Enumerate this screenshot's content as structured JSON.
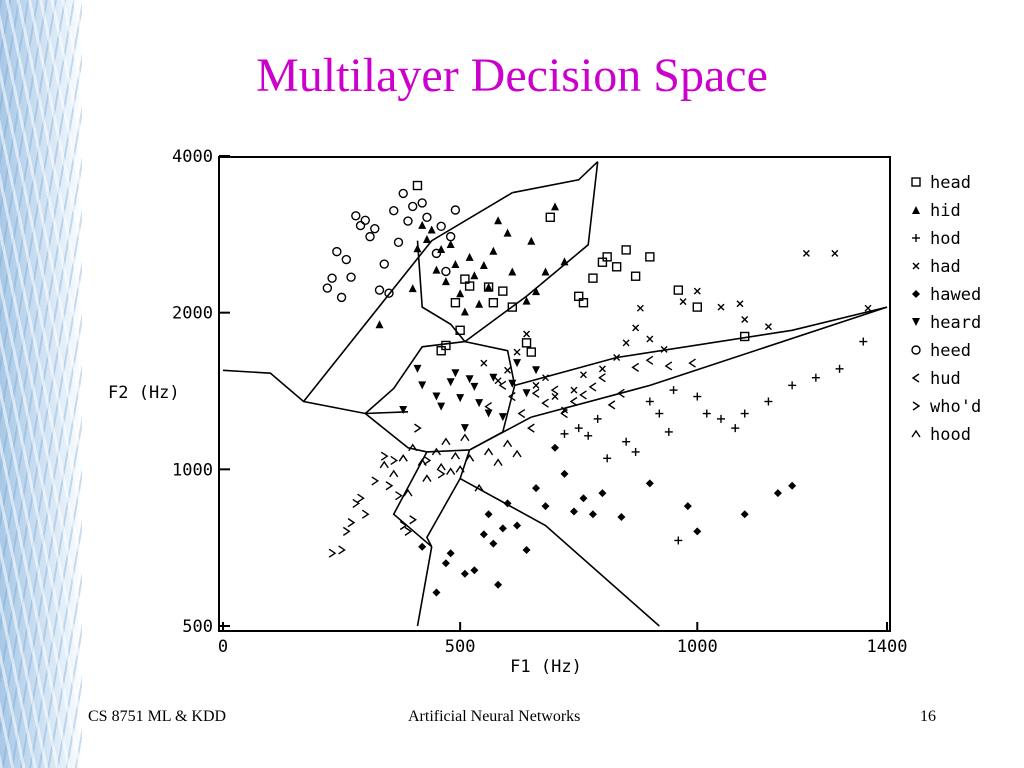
{
  "slide": {
    "title": "Multilayer Decision Space",
    "footer_left": "CS 8751 ML & KDD",
    "footer_center": "Artificial Neural Networks",
    "footer_right": "16",
    "title_color": "#cc00cc"
  },
  "chart_data": {
    "type": "scatter",
    "title": "",
    "xlabel": "F1 (Hz)",
    "ylabel": "F2 (Hz)",
    "x_scale": "linear",
    "y_scale": "log",
    "x_ticks": [
      0,
      500,
      1000,
      1400
    ],
    "x_tick_labels": [
      "0",
      "500",
      "1000",
      "1400"
    ],
    "y_ticks": [
      500,
      1000,
      2000,
      4000
    ],
    "y_tick_labels": [
      "500",
      "1000",
      "2000",
      "4000"
    ],
    "xlim": [
      0,
      1400
    ],
    "ylim": [
      500,
      4000
    ],
    "grid": false,
    "legend_position": "right",
    "legend": [
      {
        "marker": "square",
        "symbol": "□",
        "label": "head"
      },
      {
        "marker": "triangle",
        "symbol": "▲",
        "label": "hid"
      },
      {
        "marker": "plus",
        "symbol": "+",
        "label": "hod"
      },
      {
        "marker": "x",
        "symbol": "×",
        "label": "had"
      },
      {
        "marker": "diamond",
        "symbol": "◆",
        "label": "hawed"
      },
      {
        "marker": "down-triangle",
        "symbol": "▼",
        "label": "heard"
      },
      {
        "marker": "circle",
        "symbol": "○",
        "label": "heed"
      },
      {
        "marker": "lt",
        "symbol": "‹",
        "label": "hud"
      },
      {
        "marker": "gt",
        "symbol": "›",
        "label": "who'd"
      },
      {
        "marker": "caret",
        "symbol": "^",
        "label": "hood"
      }
    ],
    "boundaries": [
      [
        [
          0,
          1550
        ],
        [
          100,
          1530
        ],
        [
          170,
          1350
        ],
        [
          300,
          1280
        ],
        [
          390,
          1290
        ]
      ],
      [
        [
          170,
          1350
        ],
        [
          440,
          2750
        ],
        [
          610,
          3400
        ]
      ],
      [
        [
          610,
          3400
        ],
        [
          750,
          3600
        ],
        [
          790,
          3900
        ]
      ],
      [
        [
          790,
          3900
        ],
        [
          770,
          2700
        ],
        [
          640,
          2150
        ],
        [
          510,
          1760
        ]
      ],
      [
        [
          510,
          1760
        ],
        [
          480,
          1900
        ],
        [
          420,
          2050
        ],
        [
          410,
          2750
        ]
      ],
      [
        [
          510,
          1760
        ],
        [
          600,
          1690
        ],
        [
          615,
          1450
        ],
        [
          590,
          1180
        ],
        [
          520,
          1090
        ]
      ],
      [
        [
          510,
          1760
        ],
        [
          420,
          1720
        ],
        [
          360,
          1430
        ],
        [
          300,
          1280
        ]
      ],
      [
        [
          300,
          1280
        ],
        [
          390,
          1100
        ],
        [
          430,
          1080
        ],
        [
          520,
          1090
        ]
      ],
      [
        [
          430,
          1080
        ],
        [
          360,
          820
        ],
        [
          440,
          710
        ]
      ],
      [
        [
          440,
          710
        ],
        [
          410,
          500
        ]
      ],
      [
        [
          520,
          1090
        ],
        [
          500,
          960
        ],
        [
          430,
          740
        ],
        [
          440,
          710
        ]
      ],
      [
        [
          520,
          1090
        ],
        [
          650,
          1260
        ]
      ],
      [
        [
          615,
          1450
        ],
        [
          830,
          1640
        ],
        [
          1200,
          1850
        ],
        [
          1400,
          2050
        ]
      ],
      [
        [
          650,
          1260
        ],
        [
          900,
          1450
        ],
        [
          1400,
          2050
        ]
      ],
      [
        [
          500,
          960
        ],
        [
          680,
          780
        ],
        [
          920,
          500
        ]
      ]
    ],
    "series": [
      {
        "name": "head",
        "marker": "square",
        "points": [
          [
            410,
            3510
          ],
          [
            460,
            1690
          ],
          [
            470,
            1730
          ],
          [
            490,
            2090
          ],
          [
            500,
            1850
          ],
          [
            510,
            2320
          ],
          [
            520,
            2250
          ],
          [
            560,
            2240
          ],
          [
            570,
            2090
          ],
          [
            590,
            2200
          ],
          [
            610,
            2050
          ],
          [
            640,
            1750
          ],
          [
            650,
            1680
          ],
          [
            690,
            3050
          ],
          [
            750,
            2150
          ],
          [
            760,
            2090
          ],
          [
            780,
            2330
          ],
          [
            800,
            2500
          ],
          [
            810,
            2560
          ],
          [
            830,
            2450
          ],
          [
            850,
            2640
          ],
          [
            870,
            2350
          ],
          [
            900,
            2560
          ],
          [
            960,
            2210
          ],
          [
            1000,
            2050
          ],
          [
            1100,
            1800
          ]
        ]
      },
      {
        "name": "hid",
        "marker": "triangle",
        "points": [
          [
            330,
            1900
          ],
          [
            400,
            2230
          ],
          [
            410,
            2660
          ],
          [
            420,
            2950
          ],
          [
            430,
            2770
          ],
          [
            440,
            2890
          ],
          [
            450,
            2420
          ],
          [
            460,
            2650
          ],
          [
            470,
            2300
          ],
          [
            480,
            2710
          ],
          [
            490,
            2480
          ],
          [
            500,
            2180
          ],
          [
            510,
            2010
          ],
          [
            520,
            2560
          ],
          [
            530,
            2360
          ],
          [
            540,
            2080
          ],
          [
            550,
            2470
          ],
          [
            560,
            2240
          ],
          [
            570,
            2630
          ],
          [
            580,
            3010
          ],
          [
            600,
            2850
          ],
          [
            610,
            2400
          ],
          [
            640,
            2110
          ],
          [
            650,
            2750
          ],
          [
            660,
            2200
          ],
          [
            680,
            2400
          ],
          [
            700,
            3200
          ],
          [
            720,
            2510
          ]
        ]
      },
      {
        "name": "hod",
        "marker": "plus",
        "points": [
          [
            720,
            1170
          ],
          [
            750,
            1200
          ],
          [
            770,
            1160
          ],
          [
            790,
            1250
          ],
          [
            810,
            1050
          ],
          [
            850,
            1130
          ],
          [
            870,
            1080
          ],
          [
            900,
            1350
          ],
          [
            920,
            1280
          ],
          [
            940,
            1180
          ],
          [
            950,
            1420
          ],
          [
            1000,
            1380
          ],
          [
            1020,
            1280
          ],
          [
            1050,
            1250
          ],
          [
            1080,
            1200
          ],
          [
            1100,
            1280
          ],
          [
            1150,
            1350
          ],
          [
            1200,
            1450
          ],
          [
            1250,
            1500
          ],
          [
            1300,
            1560
          ],
          [
            1350,
            1760
          ],
          [
            960,
            730
          ]
        ]
      },
      {
        "name": "had",
        "marker": "x",
        "points": [
          [
            550,
            1600
          ],
          [
            580,
            1480
          ],
          [
            600,
            1550
          ],
          [
            620,
            1680
          ],
          [
            640,
            1820
          ],
          [
            660,
            1450
          ],
          [
            680,
            1500
          ],
          [
            700,
            1380
          ],
          [
            720,
            1300
          ],
          [
            740,
            1420
          ],
          [
            760,
            1520
          ],
          [
            800,
            1560
          ],
          [
            830,
            1640
          ],
          [
            850,
            1750
          ],
          [
            870,
            1870
          ],
          [
            880,
            2040
          ],
          [
            900,
            1780
          ],
          [
            930,
            1700
          ],
          [
            970,
            2100
          ],
          [
            1000,
            2200
          ],
          [
            1050,
            2050
          ],
          [
            1090,
            2080
          ],
          [
            1100,
            1940
          ],
          [
            1150,
            1880
          ],
          [
            1230,
            2600
          ],
          [
            1290,
            2600
          ],
          [
            1360,
            2040
          ]
        ]
      },
      {
        "name": "hawed",
        "marker": "diamond",
        "points": [
          [
            420,
            710
          ],
          [
            450,
            580
          ],
          [
            470,
            660
          ],
          [
            480,
            690
          ],
          [
            510,
            630
          ],
          [
            530,
            640
          ],
          [
            550,
            750
          ],
          [
            560,
            820
          ],
          [
            570,
            720
          ],
          [
            580,
            600
          ],
          [
            590,
            770
          ],
          [
            600,
            860
          ],
          [
            620,
            780
          ],
          [
            640,
            700
          ],
          [
            660,
            920
          ],
          [
            680,
            850
          ],
          [
            700,
            1100
          ],
          [
            720,
            980
          ],
          [
            740,
            830
          ],
          [
            760,
            880
          ],
          [
            780,
            820
          ],
          [
            800,
            900
          ],
          [
            840,
            810
          ],
          [
            900,
            940
          ],
          [
            980,
            850
          ],
          [
            1000,
            760
          ],
          [
            1100,
            820
          ],
          [
            1170,
            900
          ],
          [
            1200,
            930
          ]
        ]
      },
      {
        "name": "heard",
        "marker": "down-triangle",
        "points": [
          [
            380,
            1300
          ],
          [
            410,
            1560
          ],
          [
            420,
            1450
          ],
          [
            450,
            1380
          ],
          [
            460,
            1320
          ],
          [
            480,
            1470
          ],
          [
            490,
            1530
          ],
          [
            500,
            1370
          ],
          [
            510,
            1200
          ],
          [
            520,
            1490
          ],
          [
            530,
            1440
          ],
          [
            540,
            1340
          ],
          [
            560,
            1280
          ],
          [
            570,
            1500
          ],
          [
            590,
            1260
          ],
          [
            610,
            1460
          ],
          [
            620,
            1600
          ],
          [
            640,
            1400
          ],
          [
            660,
            1550
          ]
        ]
      },
      {
        "name": "heed",
        "marker": "circle",
        "points": [
          [
            220,
            2230
          ],
          [
            230,
            2330
          ],
          [
            240,
            2620
          ],
          [
            250,
            2140
          ],
          [
            260,
            2530
          ],
          [
            270,
            2340
          ],
          [
            280,
            3070
          ],
          [
            290,
            2940
          ],
          [
            300,
            3010
          ],
          [
            310,
            2800
          ],
          [
            320,
            2900
          ],
          [
            330,
            2210
          ],
          [
            340,
            2480
          ],
          [
            350,
            2180
          ],
          [
            360,
            3140
          ],
          [
            370,
            2730
          ],
          [
            380,
            3390
          ],
          [
            390,
            3000
          ],
          [
            400,
            3200
          ],
          [
            420,
            3250
          ],
          [
            430,
            3050
          ],
          [
            450,
            2600
          ],
          [
            460,
            2930
          ],
          [
            470,
            2400
          ],
          [
            480,
            2800
          ],
          [
            490,
            3150
          ]
        ]
      },
      {
        "name": "hud",
        "marker": "lt",
        "points": [
          [
            560,
            1320
          ],
          [
            590,
            1450
          ],
          [
            610,
            1380
          ],
          [
            630,
            1280
          ],
          [
            650,
            1200
          ],
          [
            660,
            1400
          ],
          [
            680,
            1340
          ],
          [
            700,
            1420
          ],
          [
            720,
            1280
          ],
          [
            740,
            1350
          ],
          [
            760,
            1390
          ],
          [
            780,
            1440
          ],
          [
            800,
            1500
          ],
          [
            820,
            1330
          ],
          [
            840,
            1400
          ],
          [
            870,
            1570
          ],
          [
            900,
            1620
          ],
          [
            940,
            1580
          ],
          [
            990,
            1600
          ]
        ]
      },
      {
        "name": "who'd",
        "marker": "gt",
        "points": [
          [
            230,
            690
          ],
          [
            250,
            700
          ],
          [
            260,
            760
          ],
          [
            270,
            790
          ],
          [
            280,
            860
          ],
          [
            290,
            880
          ],
          [
            300,
            820
          ],
          [
            320,
            950
          ],
          [
            340,
            1060
          ],
          [
            350,
            930
          ],
          [
            360,
            1040
          ],
          [
            370,
            890
          ],
          [
            380,
            780
          ],
          [
            390,
            760
          ],
          [
            400,
            800
          ],
          [
            410,
            1200
          ],
          [
            430,
            1040
          ],
          [
            460,
            980
          ]
        ]
      },
      {
        "name": "hood",
        "marker": "caret",
        "points": [
          [
            340,
            1020
          ],
          [
            360,
            980
          ],
          [
            380,
            1050
          ],
          [
            390,
            900
          ],
          [
            400,
            1100
          ],
          [
            420,
            1030
          ],
          [
            430,
            960
          ],
          [
            450,
            1080
          ],
          [
            460,
            1010
          ],
          [
            470,
            1130
          ],
          [
            480,
            990
          ],
          [
            490,
            1060
          ],
          [
            500,
            1000
          ],
          [
            510,
            1150
          ],
          [
            520,
            1050
          ],
          [
            540,
            920
          ],
          [
            560,
            1080
          ],
          [
            580,
            1030
          ],
          [
            600,
            1120
          ],
          [
            620,
            1070
          ]
        ]
      }
    ]
  }
}
